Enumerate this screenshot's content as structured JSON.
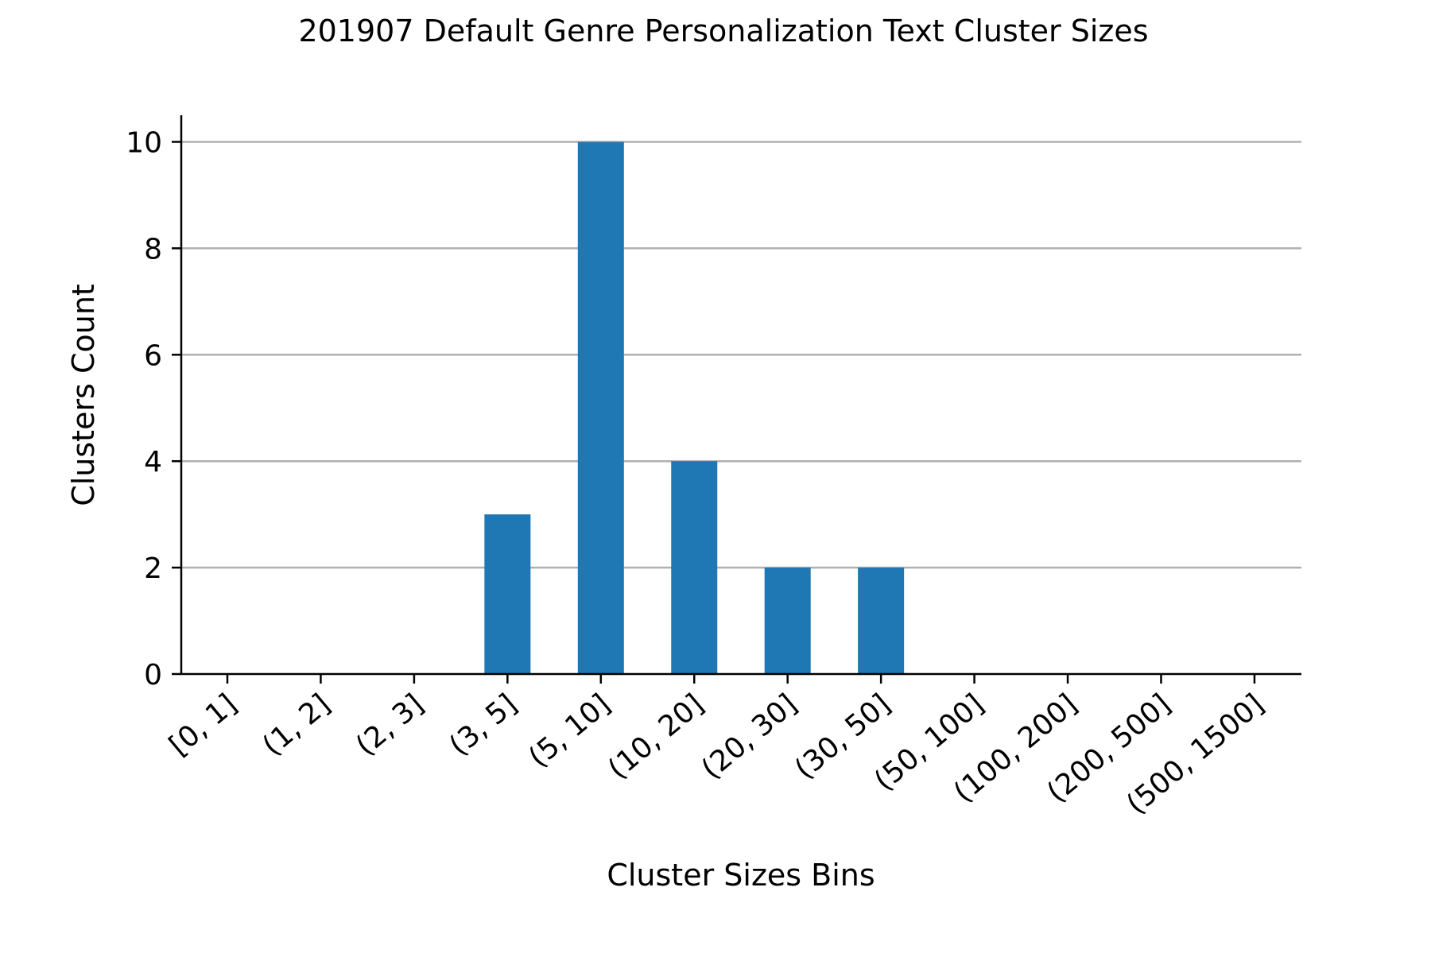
{
  "chart_data": {
    "type": "bar",
    "title": "201907 Default Genre Personalization Text Cluster Sizes",
    "xlabel": "Cluster Sizes Bins",
    "ylabel": "Clusters Count",
    "categories": [
      "[0, 1]",
      "(1, 2]",
      "(2, 3]",
      "(3, 5]",
      "(5, 10]",
      "(10, 20]",
      "(20, 30]",
      "(30, 50]",
      "(50, 100]",
      "(100, 200]",
      "(200, 500]",
      "(500, 1500]"
    ],
    "values": [
      0,
      0,
      0,
      3,
      10,
      4,
      2,
      2,
      0,
      0,
      0,
      0
    ],
    "ylim": [
      0,
      10.5
    ],
    "yticks": [
      0,
      2,
      4,
      6,
      8,
      10
    ],
    "grid": "horizontal",
    "legend": "none",
    "colors": {
      "bar": "#1f77b4",
      "grid": "#b0b0b0",
      "axis": "#000000"
    }
  }
}
